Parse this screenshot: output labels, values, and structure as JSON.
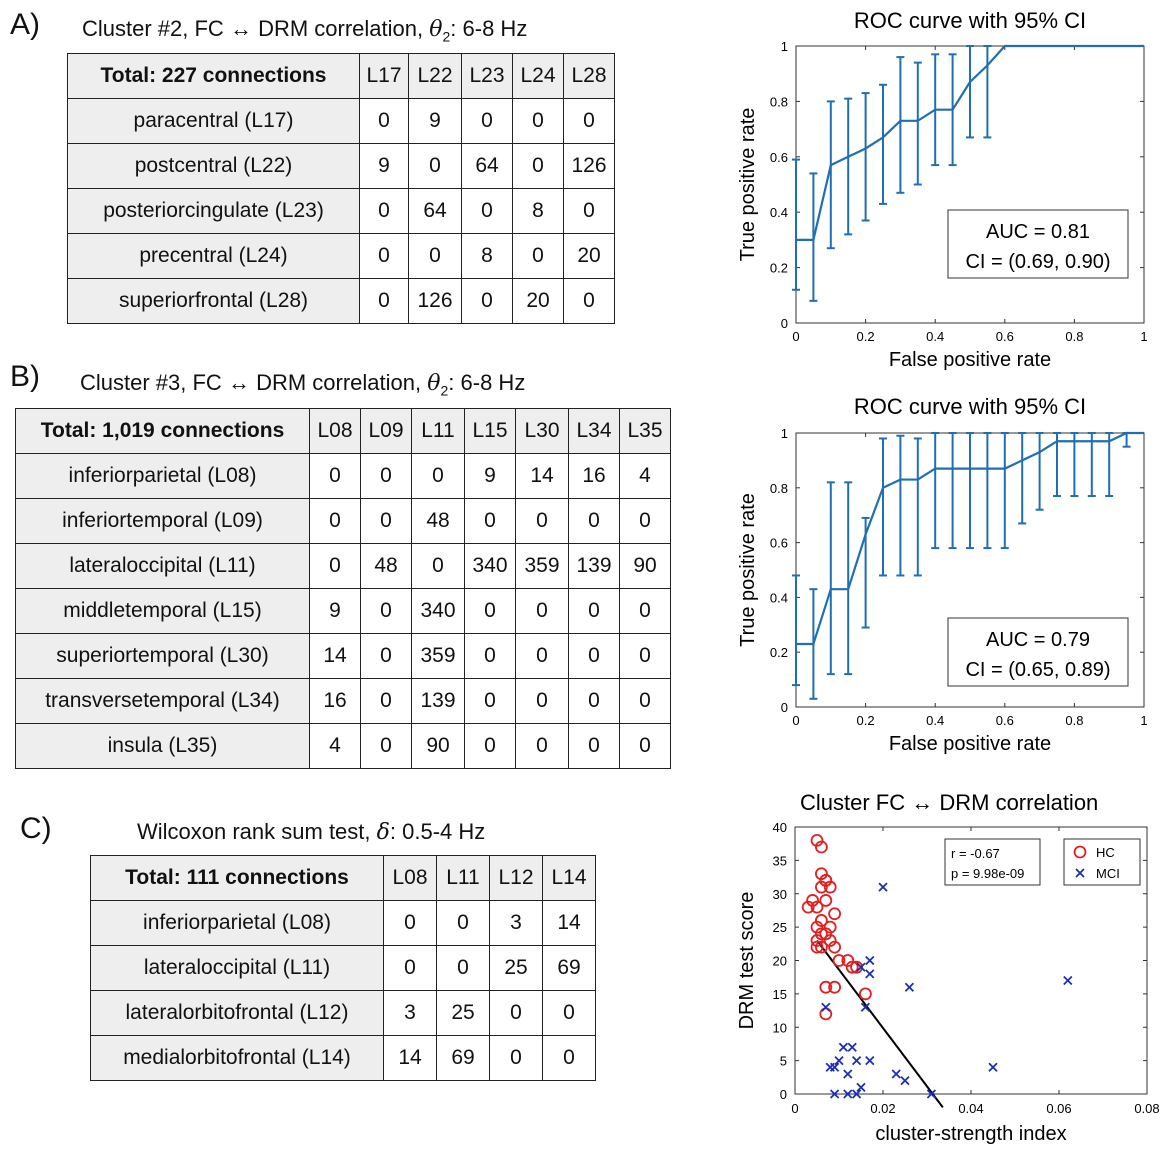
{
  "panels": {
    "a": {
      "label": "A)",
      "title_prefix": "Cluster #2, FC",
      "title_mid": "DRM correlation,",
      "title_sym": "θ",
      "title_sub": "2",
      "title_suffix": ": 6-8 Hz",
      "table": {
        "corner": "Total: 227 connections",
        "columns": [
          "L17",
          "L22",
          "L23",
          "L24",
          "L28"
        ],
        "rows": [
          {
            "label": "paracentral (L17)",
            "cells": [
              "0",
              "9",
              "0",
              "0",
              "0"
            ]
          },
          {
            "label": "postcentral (L22)",
            "cells": [
              "9",
              "0",
              "64",
              "0",
              "126"
            ]
          },
          {
            "label": "posteriorcingulate (L23)",
            "cells": [
              "0",
              "64",
              "0",
              "8",
              "0"
            ]
          },
          {
            "label": "precentral (L24)",
            "cells": [
              "0",
              "0",
              "8",
              "0",
              "20"
            ]
          },
          {
            "label": "superiorfrontal (L28)",
            "cells": [
              "0",
              "126",
              "0",
              "20",
              "0"
            ]
          }
        ]
      }
    },
    "b": {
      "label": "B)",
      "title_prefix": "Cluster #3, FC",
      "title_mid": "DRM correlation,",
      "title_sym": "θ",
      "title_sub": "2",
      "title_suffix": ": 6-8 Hz",
      "table": {
        "corner": "Total: 1,019 connections",
        "columns": [
          "L08",
          "L09",
          "L11",
          "L15",
          "L30",
          "L34",
          "L35"
        ],
        "rows": [
          {
            "label": "inferiorparietal (L08)",
            "cells": [
              "0",
              "0",
              "0",
              "9",
              "14",
              "16",
              "4"
            ]
          },
          {
            "label": "inferiortemporal (L09)",
            "cells": [
              "0",
              "0",
              "48",
              "0",
              "0",
              "0",
              "0"
            ]
          },
          {
            "label": "lateraloccipital (L11)",
            "cells": [
              "0",
              "48",
              "0",
              "340",
              "359",
              "139",
              "90"
            ]
          },
          {
            "label": "middletemporal (L15)",
            "cells": [
              "9",
              "0",
              "340",
              "0",
              "0",
              "0",
              "0"
            ]
          },
          {
            "label": "superiortemporal (L30)",
            "cells": [
              "14",
              "0",
              "359",
              "0",
              "0",
              "0",
              "0"
            ]
          },
          {
            "label": "transversetemporal (L34)",
            "cells": [
              "16",
              "0",
              "139",
              "0",
              "0",
              "0",
              "0"
            ]
          },
          {
            "label": "insula (L35)",
            "cells": [
              "4",
              "0",
              "90",
              "0",
              "0",
              "0",
              "0"
            ]
          }
        ]
      }
    },
    "c": {
      "label": "C)",
      "title_prefix": "Wilcoxon rank sum test,",
      "title_sym": "δ",
      "title_suffix": ": 0.5-4 Hz",
      "table": {
        "corner": "Total: 111 connections",
        "columns": [
          "L08",
          "L11",
          "L12",
          "L14"
        ],
        "rows": [
          {
            "label": "inferiorparietal (L08)",
            "cells": [
              "0",
              "0",
              "3",
              "14"
            ]
          },
          {
            "label": "lateraloccipital (L11)",
            "cells": [
              "0",
              "0",
              "25",
              "69"
            ]
          },
          {
            "label": "lateralorbitofrontal (L12)",
            "cells": [
              "3",
              "25",
              "0",
              "0"
            ]
          },
          {
            "label": "medialorbitofrontal (L14)",
            "cells": [
              "14",
              "69",
              "0",
              "0"
            ]
          }
        ]
      }
    }
  },
  "chart_data": [
    {
      "type": "line",
      "title": "ROC curve with 95% CI",
      "xlabel": "False positive rate",
      "ylabel": "True positive rate",
      "xlim": [
        0,
        1
      ],
      "ylim": [
        0,
        1
      ],
      "xticks": [
        "0",
        "0.2",
        "0.4",
        "0.6",
        "0.8",
        "1"
      ],
      "yticks": [
        "0",
        "0.2",
        "0.4",
        "0.6",
        "0.8",
        "1"
      ],
      "color": "#1f6fb2",
      "x": [
        0,
        0.05,
        0.1,
        0.15,
        0.2,
        0.25,
        0.3,
        0.35,
        0.4,
        0.45,
        0.5,
        0.55,
        0.6,
        0.65,
        0.7,
        0.75,
        0.8,
        0.85,
        0.9,
        0.95,
        1
      ],
      "y": [
        0.3,
        0.3,
        0.57,
        0.6,
        0.63,
        0.67,
        0.73,
        0.73,
        0.77,
        0.77,
        0.87,
        0.93,
        1,
        1,
        1,
        1,
        1,
        1,
        1,
        1,
        1
      ],
      "err_low": [
        0.12,
        0.08,
        0.27,
        0.32,
        0.37,
        0.43,
        0.47,
        0.5,
        0.57,
        0.57,
        0.67,
        0.67,
        1,
        1,
        1,
        1,
        1,
        1,
        1,
        1,
        1
      ],
      "err_high": [
        0.59,
        0.54,
        0.8,
        0.81,
        0.83,
        0.86,
        0.96,
        0.94,
        0.97,
        0.97,
        1,
        1,
        1,
        1,
        1,
        1,
        1,
        1,
        1,
        1,
        1
      ],
      "auc_text": "AUC = 0.81",
      "ci_text": "CI = (0.69, 0.90)"
    },
    {
      "type": "line",
      "title": "ROC curve with 95% CI",
      "xlabel": "False positive rate",
      "ylabel": "True positive rate",
      "xlim": [
        0,
        1
      ],
      "ylim": [
        0,
        1
      ],
      "xticks": [
        "0",
        "0.2",
        "0.4",
        "0.6",
        "0.8",
        "1"
      ],
      "yticks": [
        "0",
        "0.2",
        "0.4",
        "0.6",
        "0.8",
        "1"
      ],
      "color": "#1f6fb2",
      "x": [
        0,
        0.05,
        0.1,
        0.15,
        0.2,
        0.25,
        0.3,
        0.35,
        0.4,
        0.45,
        0.5,
        0.55,
        0.6,
        0.65,
        0.7,
        0.75,
        0.8,
        0.85,
        0.9,
        0.95,
        1
      ],
      "y": [
        0.23,
        0.23,
        0.43,
        0.43,
        0.63,
        0.8,
        0.83,
        0.83,
        0.87,
        0.87,
        0.87,
        0.87,
        0.87,
        0.9,
        0.93,
        0.97,
        0.97,
        0.97,
        0.97,
        1,
        1
      ],
      "err_low": [
        0.08,
        0.03,
        0.12,
        0.12,
        0.29,
        0.48,
        0.48,
        0.48,
        0.58,
        0.58,
        0.58,
        0.58,
        0.58,
        0.67,
        0.72,
        0.77,
        0.77,
        0.77,
        0.77,
        0.95,
        1
      ],
      "err_high": [
        0.48,
        0.43,
        0.82,
        0.82,
        0.69,
        0.98,
        0.99,
        0.98,
        1,
        1,
        1,
        1,
        1,
        1,
        1,
        1,
        1,
        1,
        1,
        1,
        1
      ],
      "auc_text": "AUC = 0.79",
      "ci_text": "CI = (0.65, 0.89)"
    },
    {
      "type": "scatter",
      "title_prefix": "Cluster FC",
      "title_suffix": "DRM correlation",
      "xlabel": "cluster-strength index",
      "ylabel": "DRM test score",
      "xlim": [
        0,
        0.08
      ],
      "ylim": [
        0,
        40
      ],
      "xticks": [
        "0",
        "0.02",
        "0.04",
        "0.06",
        "0.08"
      ],
      "yticks": [
        "0",
        "5",
        "10",
        "15",
        "20",
        "25",
        "30",
        "35",
        "40"
      ],
      "stats": [
        "r = -0.67",
        "p = 9.98e-09"
      ],
      "fit": {
        "x": [
          0.005,
          0.0336
        ],
        "y": [
          23,
          -2
        ]
      },
      "series": [
        {
          "name": "HC",
          "marker": "circle",
          "color": "#e02020",
          "points": [
            [
              0.005,
              38
            ],
            [
              0.006,
              37
            ],
            [
              0.006,
              33
            ],
            [
              0.007,
              32
            ],
            [
              0.006,
              31
            ],
            [
              0.007,
              32
            ],
            [
              0.008,
              31
            ],
            [
              0.004,
              29
            ],
            [
              0.005,
              28
            ],
            [
              0.007,
              29
            ],
            [
              0.003,
              28
            ],
            [
              0.009,
              27
            ],
            [
              0.006,
              26
            ],
            [
              0.005,
              25
            ],
            [
              0.008,
              25
            ],
            [
              0.006,
              24
            ],
            [
              0.007,
              24
            ],
            [
              0.005,
              23
            ],
            [
              0.008,
              23
            ],
            [
              0.006,
              22
            ],
            [
              0.005,
              22
            ],
            [
              0.009,
              22
            ],
            [
              0.01,
              20
            ],
            [
              0.012,
              20
            ],
            [
              0.013,
              19
            ],
            [
              0.014,
              19
            ],
            [
              0.007,
              16
            ],
            [
              0.009,
              16
            ],
            [
              0.016,
              15
            ],
            [
              0.007,
              12
            ]
          ]
        },
        {
          "name": "MCI",
          "marker": "x",
          "color": "#1a2fb8",
          "points": [
            [
              0.02,
              31
            ],
            [
              0.017,
              20
            ],
            [
              0.017,
              18
            ],
            [
              0.015,
              19
            ],
            [
              0.026,
              16
            ],
            [
              0.062,
              17
            ],
            [
              0.007,
              13
            ],
            [
              0.016,
              13
            ],
            [
              0.011,
              7
            ],
            [
              0.013,
              7
            ],
            [
              0.01,
              5
            ],
            [
              0.014,
              5
            ],
            [
              0.017,
              5
            ],
            [
              0.045,
              4
            ],
            [
              0.008,
              4
            ],
            [
              0.009,
              4
            ],
            [
              0.012,
              3
            ],
            [
              0.023,
              3
            ],
            [
              0.025,
              2
            ],
            [
              0.015,
              1
            ],
            [
              0.009,
              0
            ],
            [
              0.012,
              0
            ],
            [
              0.014,
              0
            ],
            [
              0.031,
              0
            ]
          ]
        }
      ]
    }
  ]
}
